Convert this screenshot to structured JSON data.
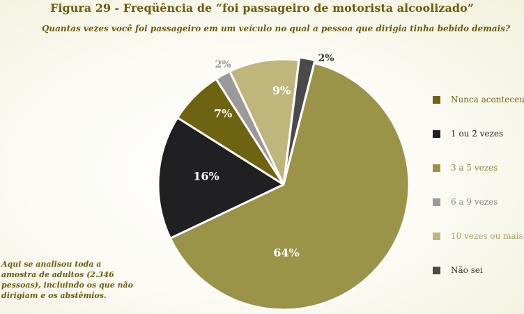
{
  "chart_data": {
    "type": "pie",
    "title": "Figura 29 - Freqüência de “foi passageiro de motorista alcoolizado”",
    "subtitle": "Quantas vezes você foi passageiro em um veículo no qual a pessoa que dirigia tinha bebido demais?",
    "legend_position": "right",
    "slices": [
      {
        "label": "Não sei",
        "value": 2,
        "value_label": "2%",
        "color": "#4a4a4a",
        "legend_text_color": "#333333"
      },
      {
        "label": "3 a 5 vezes",
        "value": 64,
        "value_label": "64%",
        "color": "#9b9448",
        "legend_text_color": "#8c8440"
      },
      {
        "label": "1 ou 2 vezes",
        "value": 16,
        "value_label": "16%",
        "color": "#201f22",
        "legend_text_color": "#201f22"
      },
      {
        "label": "Nunca aconteceu",
        "value": 7,
        "value_label": "7%",
        "color": "#6e6310",
        "legend_text_color": "#6e6310"
      },
      {
        "label": "6 a 9 vezes",
        "value": 2,
        "value_label": "2%",
        "color": "#9a9a9a",
        "legend_text_color": "#888888"
      },
      {
        "label": "10 vezes ou mais",
        "value": 9,
        "value_label": "9%",
        "color": "#bfb67c",
        "legend_text_color": "#a9a06a"
      }
    ],
    "legend_order": [
      "Nunca aconteceu",
      "1 ou 2 vezes",
      "3 a 5 vezes",
      "6 a 9 vezes",
      "10 vezes ou mais",
      "Não sei"
    ]
  },
  "note": "Aqui se analisou toda a amostra de adultos (2.346 pessoas), incluindo os que não dirigiam e os abstêmios."
}
